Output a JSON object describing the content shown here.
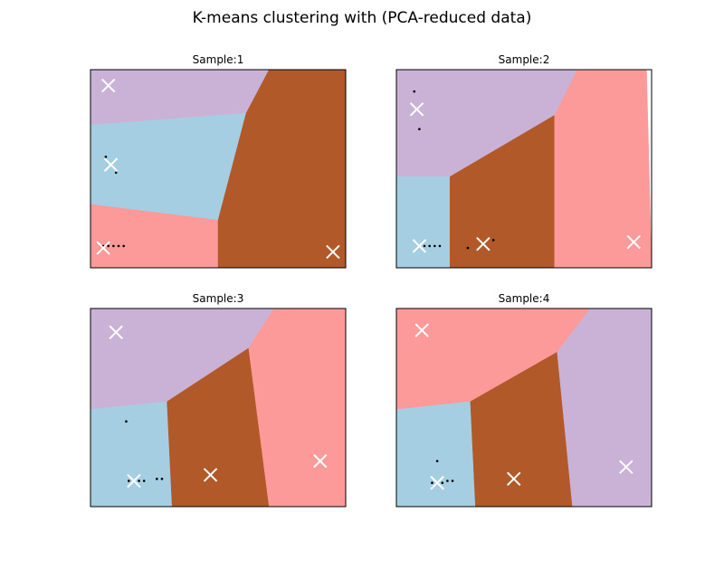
{
  "title": "K-means clustering with (PCA-reduced data)",
  "colors": {
    "lavender": "#cab2d6",
    "lightblue": "#a6cee3",
    "brown": "#b15928",
    "salmon": "#fb9a99",
    "points": "#000000",
    "centroid": "#ffffff"
  },
  "chart_data": [
    {
      "type": "scatter",
      "title": "Sample:1",
      "xlim": [
        0,
        10
      ],
      "ylim": [
        0,
        10
      ],
      "regions": [
        {
          "color": "lavender",
          "polygon": [
            [
              0,
              10
            ],
            [
              7.0,
              10
            ],
            [
              6.1,
              7.8
            ],
            [
              0,
              7.2
            ]
          ]
        },
        {
          "color": "lightblue",
          "polygon": [
            [
              0,
              7.2
            ],
            [
              6.1,
              7.8
            ],
            [
              5.0,
              2.4
            ],
            [
              0,
              3.2
            ]
          ]
        },
        {
          "color": "salmon",
          "polygon": [
            [
              0,
              3.2
            ],
            [
              5.0,
              2.4
            ],
            [
              5.0,
              0
            ],
            [
              0,
              0
            ]
          ]
        },
        {
          "color": "brown",
          "polygon": [
            [
              7.0,
              10
            ],
            [
              10,
              10
            ],
            [
              10,
              0
            ],
            [
              5.0,
              0
            ],
            [
              5.0,
              2.4
            ],
            [
              6.1,
              7.8
            ]
          ]
        }
      ],
      "points": [
        [
          0.6,
          5.6
        ],
        [
          1.0,
          4.8
        ],
        [
          0.5,
          1.1
        ],
        [
          0.7,
          1.1
        ],
        [
          0.9,
          1.1
        ],
        [
          1.1,
          1.1
        ],
        [
          1.3,
          1.1
        ]
      ],
      "centroids": [
        [
          0.7,
          9.2
        ],
        [
          0.8,
          5.2
        ],
        [
          0.5,
          1.0
        ],
        [
          9.5,
          0.8
        ]
      ]
    },
    {
      "type": "scatter",
      "title": "Sample:2",
      "xlim": [
        0,
        10
      ],
      "ylim": [
        0,
        10
      ],
      "regions": [
        {
          "color": "lavender",
          "polygon": [
            [
              0,
              10
            ],
            [
              7.1,
              10
            ],
            [
              6.2,
              7.7
            ],
            [
              2.1,
              4.6
            ],
            [
              0,
              4.6
            ]
          ]
        },
        {
          "color": "lightblue",
          "polygon": [
            [
              0,
              4.6
            ],
            [
              2.1,
              4.6
            ],
            [
              2.1,
              0
            ],
            [
              0,
              0
            ]
          ]
        },
        {
          "color": "brown",
          "polygon": [
            [
              2.1,
              4.6
            ],
            [
              6.2,
              7.7
            ],
            [
              6.2,
              0
            ],
            [
              2.1,
              0
            ]
          ]
        },
        {
          "color": "salmon",
          "polygon": [
            [
              7.1,
              10
            ],
            [
              9.8,
              10
            ],
            [
              10,
              0
            ],
            [
              6.2,
              0
            ],
            [
              6.2,
              7.7
            ]
          ]
        }
      ],
      "points": [
        [
          0.7,
          8.9
        ],
        [
          0.9,
          7.0
        ],
        [
          0.9,
          1.1
        ],
        [
          1.1,
          1.1
        ],
        [
          1.3,
          1.1
        ],
        [
          1.5,
          1.1
        ],
        [
          1.7,
          1.1
        ],
        [
          2.8,
          1.0
        ],
        [
          3.8,
          1.4
        ]
      ],
      "centroids": [
        [
          0.8,
          8.0
        ],
        [
          0.9,
          1.1
        ],
        [
          3.4,
          1.2
        ],
        [
          9.3,
          1.3
        ]
      ]
    },
    {
      "type": "scatter",
      "title": "Sample:3",
      "xlim": [
        0,
        10
      ],
      "ylim": [
        0,
        10
      ],
      "regions": [
        {
          "color": "lavender",
          "polygon": [
            [
              0,
              10
            ],
            [
              7.2,
              10
            ],
            [
              6.2,
              8.0
            ],
            [
              3.0,
              5.3
            ],
            [
              0,
              4.9
            ]
          ]
        },
        {
          "color": "lightblue",
          "polygon": [
            [
              0,
              4.9
            ],
            [
              3.0,
              5.3
            ],
            [
              3.2,
              0
            ],
            [
              0,
              0
            ]
          ]
        },
        {
          "color": "brown",
          "polygon": [
            [
              3.0,
              5.3
            ],
            [
              6.2,
              8.0
            ],
            [
              7.0,
              0
            ],
            [
              3.2,
              0
            ]
          ]
        },
        {
          "color": "salmon",
          "polygon": [
            [
              7.2,
              10
            ],
            [
              10,
              10
            ],
            [
              10,
              0
            ],
            [
              7.0,
              0
            ],
            [
              6.2,
              8.0
            ]
          ]
        }
      ],
      "points": [
        [
          1.4,
          4.3
        ],
        [
          1.5,
          1.3
        ],
        [
          1.7,
          1.3
        ],
        [
          1.9,
          1.3
        ],
        [
          2.1,
          1.3
        ],
        [
          2.6,
          1.4
        ],
        [
          2.8,
          1.4
        ]
      ],
      "centroids": [
        [
          1.0,
          8.8
        ],
        [
          1.7,
          1.3
        ],
        [
          4.7,
          1.6
        ],
        [
          9.0,
          2.3
        ]
      ]
    },
    {
      "type": "scatter",
      "title": "Sample:4",
      "xlim": [
        0,
        10
      ],
      "ylim": [
        0,
        10
      ],
      "regions": [
        {
          "color": "salmon",
          "polygon": [
            [
              0,
              10
            ],
            [
              7.6,
              10
            ],
            [
              6.3,
              7.8
            ],
            [
              2.9,
              5.3
            ],
            [
              0,
              4.9
            ]
          ]
        },
        {
          "color": "lightblue",
          "polygon": [
            [
              0,
              4.9
            ],
            [
              2.9,
              5.3
            ],
            [
              3.1,
              0
            ],
            [
              0,
              0
            ]
          ]
        },
        {
          "color": "brown",
          "polygon": [
            [
              2.9,
              5.3
            ],
            [
              6.3,
              7.8
            ],
            [
              6.9,
              0
            ],
            [
              3.1,
              0
            ]
          ]
        },
        {
          "color": "lavender",
          "polygon": [
            [
              7.6,
              10
            ],
            [
              10,
              10
            ],
            [
              10,
              0
            ],
            [
              6.9,
              0
            ],
            [
              6.3,
              7.8
            ]
          ]
        }
      ],
      "points": [
        [
          1.6,
          2.3
        ],
        [
          1.4,
          1.2
        ],
        [
          1.6,
          1.2
        ],
        [
          1.8,
          1.2
        ],
        [
          2.0,
          1.3
        ],
        [
          2.2,
          1.3
        ]
      ],
      "centroids": [
        [
          1.0,
          8.9
        ],
        [
          1.6,
          1.2
        ],
        [
          4.6,
          1.4
        ],
        [
          9.0,
          2.0
        ]
      ]
    }
  ]
}
